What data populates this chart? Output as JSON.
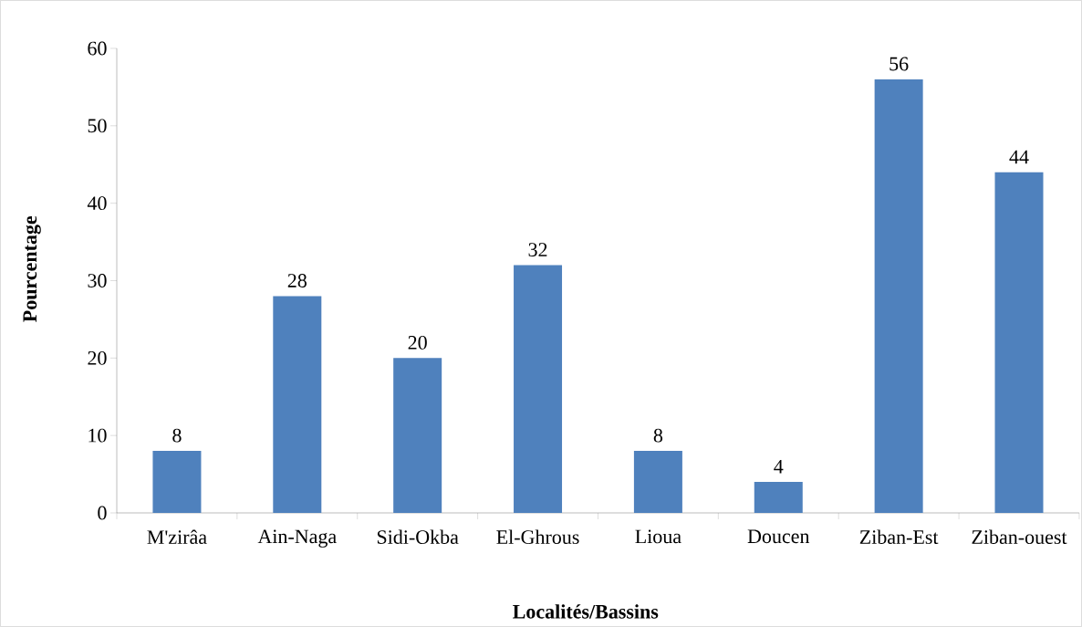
{
  "chart_data": {
    "type": "bar",
    "xlabel": "Localités/Bassins",
    "ylabel": "Pourcentage",
    "categories": [
      "M'zirâa",
      "Ain-Naga",
      "Sidi-Okba",
      "El-Ghrous",
      "Lioua",
      "Doucen",
      "Ziban-Est",
      "Ziban-ouest"
    ],
    "values": [
      8,
      28,
      20,
      32,
      8,
      4,
      56,
      44
    ],
    "color": "#4f81bd",
    "ylim": [
      0,
      60
    ],
    "yticks": [
      0,
      10,
      20,
      30,
      40,
      50,
      60
    ],
    "data_labels": true,
    "grid": false
  }
}
